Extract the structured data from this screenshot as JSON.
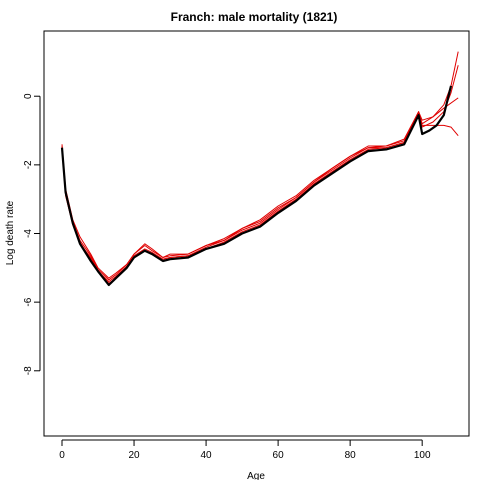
{
  "chart_data": {
    "type": "line",
    "title": "Franch: male mortality (1821)",
    "xlabel": "Age",
    "ylabel": "Log death rate",
    "xlim": [
      -5,
      113
    ],
    "ylim": [
      -9.9,
      1.9
    ],
    "x_ticks": [
      0,
      20,
      40,
      60,
      80,
      100
    ],
    "y_ticks": [
      0,
      -2,
      -4,
      -6,
      -8
    ],
    "grid": false,
    "legend": "none",
    "series": [
      {
        "color": "#000000",
        "width": 2.2,
        "x": [
          0,
          1,
          3,
          5,
          8,
          10,
          13,
          15,
          18,
          20,
          23,
          25,
          28,
          30,
          35,
          40,
          45,
          50,
          55,
          60,
          65,
          70,
          75,
          80,
          85,
          90,
          95,
          99,
          100,
          102,
          104,
          106,
          108
        ],
        "y": [
          -1.5,
          -2.8,
          -3.7,
          -4.3,
          -4.8,
          -5.1,
          -5.5,
          -5.3,
          -5.0,
          -4.7,
          -4.5,
          -4.6,
          -4.8,
          -4.75,
          -4.7,
          -4.45,
          -4.3,
          -4.0,
          -3.8,
          -3.4,
          -3.05,
          -2.6,
          -2.25,
          -1.9,
          -1.6,
          -1.55,
          -1.4,
          -0.55,
          -1.1,
          -1.0,
          -0.85,
          -0.55,
          0.3
        ]
      },
      {
        "color": "#e00000",
        "width": 1,
        "x": [
          0,
          1,
          3,
          5,
          8,
          10,
          13,
          15,
          18,
          20,
          23,
          25,
          28,
          30,
          35,
          40,
          45,
          50,
          55,
          60,
          65,
          70,
          75,
          80,
          85,
          90,
          95,
          99,
          100,
          103,
          106,
          108,
          110
        ],
        "y": [
          -1.4,
          -2.7,
          -3.6,
          -4.1,
          -4.6,
          -5.0,
          -5.3,
          -5.15,
          -4.9,
          -4.6,
          -4.35,
          -4.5,
          -4.7,
          -4.6,
          -4.6,
          -4.35,
          -4.15,
          -3.85,
          -3.6,
          -3.2,
          -2.9,
          -2.45,
          -2.1,
          -1.75,
          -1.5,
          -1.45,
          -1.25,
          -0.45,
          -0.8,
          -0.6,
          -0.25,
          0.3,
          1.3
        ]
      },
      {
        "color": "#e00000",
        "width": 1,
        "x": [
          0,
          1,
          3,
          5,
          8,
          10,
          13,
          15,
          18,
          20,
          23,
          25,
          28,
          30,
          35,
          40,
          45,
          50,
          55,
          60,
          65,
          70,
          75,
          80,
          85,
          90,
          95,
          99,
          100,
          103,
          106,
          108,
          110
        ],
        "y": [
          -1.5,
          -2.9,
          -3.75,
          -4.25,
          -4.75,
          -5.1,
          -5.4,
          -5.25,
          -4.95,
          -4.65,
          -4.45,
          -4.55,
          -4.75,
          -4.7,
          -4.65,
          -4.4,
          -4.2,
          -3.9,
          -3.7,
          -3.3,
          -2.95,
          -2.5,
          -2.15,
          -1.8,
          -1.5,
          -1.5,
          -1.35,
          -0.5,
          -0.9,
          -0.75,
          -0.45,
          0.1,
          0.9
        ]
      },
      {
        "color": "#e00000",
        "width": 1,
        "x": [
          0,
          1,
          3,
          5,
          8,
          10,
          13,
          15,
          18,
          20,
          23,
          25,
          28,
          30,
          35,
          40,
          45,
          50,
          55,
          60,
          65,
          70,
          75,
          80,
          85,
          90,
          95,
          99,
          100,
          103,
          106,
          110
        ],
        "y": [
          -1.45,
          -2.75,
          -3.65,
          -4.2,
          -4.65,
          -5.05,
          -5.35,
          -5.2,
          -4.9,
          -4.6,
          -4.3,
          -4.45,
          -4.7,
          -4.65,
          -4.6,
          -4.35,
          -4.2,
          -3.85,
          -3.65,
          -3.25,
          -2.95,
          -2.5,
          -2.1,
          -1.75,
          -1.45,
          -1.45,
          -1.3,
          -0.45,
          -0.7,
          -0.6,
          -0.35,
          -0.05
        ]
      },
      {
        "color": "#e00000",
        "width": 1,
        "x": [
          0,
          1,
          3,
          5,
          8,
          10,
          13,
          15,
          18,
          20,
          23,
          25,
          28,
          30,
          35,
          40,
          45,
          50,
          55,
          60,
          65,
          70,
          75,
          80,
          85,
          90,
          95,
          99,
          100,
          103,
          106,
          108,
          110
        ],
        "y": [
          -1.5,
          -2.85,
          -3.7,
          -4.3,
          -4.7,
          -5.1,
          -5.45,
          -5.3,
          -5.0,
          -4.7,
          -4.5,
          -4.6,
          -4.75,
          -4.7,
          -4.65,
          -4.45,
          -4.25,
          -3.95,
          -3.75,
          -3.35,
          -3.0,
          -2.55,
          -2.2,
          -1.85,
          -1.55,
          -1.5,
          -1.35,
          -0.5,
          -0.85,
          -0.85,
          -0.85,
          -0.9,
          -1.15
        ]
      }
    ]
  }
}
